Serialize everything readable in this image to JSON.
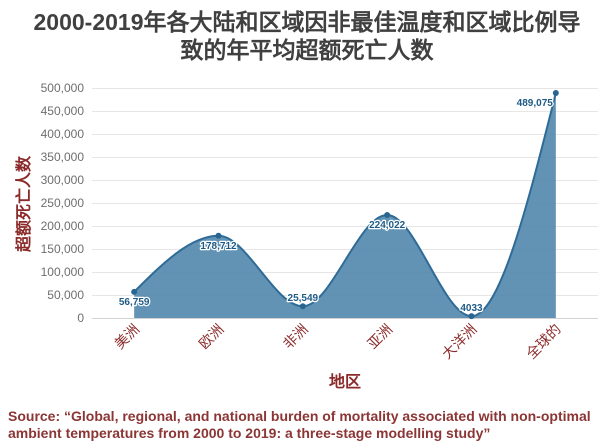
{
  "title_lines": [
    "2000-2019年各大陆和区域因非最佳温度和区域比例导",
    "致的年平均超额死亡人数"
  ],
  "chart_data": {
    "type": "area",
    "curve": "smooth",
    "categories": [
      "美洲",
      "欧洲",
      "非洲",
      "亚洲",
      "大洋洲",
      "全球的"
    ],
    "values": [
      56759,
      178712,
      25549,
      224022,
      4033,
      489075
    ],
    "data_labels": [
      "56,759",
      "178,712",
      "25,549",
      "224,022",
      "4033",
      "489,075"
    ],
    "xlabel": "地区",
    "ylabel": "超额死亡人数",
    "ylim": [
      0,
      500000
    ],
    "y_ticks": [
      0,
      50000,
      100000,
      150000,
      200000,
      250000,
      300000,
      350000,
      400000,
      450000,
      500000
    ],
    "y_tick_labels": [
      "0",
      "50,000",
      "100,000",
      "150,000",
      "200,000",
      "250,000",
      "300,000",
      "350,000",
      "400,000",
      "450,000",
      "500,000"
    ],
    "grid": true,
    "markers": true
  },
  "source_lines": [
    "Source: “Global, regional, and national burden of mortality associated with non-optimal",
    "ambient temperatures from 2000 to 2019: a three-stage modelling study”"
  ],
  "colors": {
    "title": "#404040",
    "axis_text": "#8b2a2a",
    "tick_text": "#6e6e6e",
    "grid": "#e6e6e6",
    "axis_line": "#d2d2d2",
    "area_fill": "#558aaf",
    "line": "#2e6b96",
    "marker": "#2a6591",
    "data_label": "#1e5a86",
    "source": "#8b3535"
  }
}
